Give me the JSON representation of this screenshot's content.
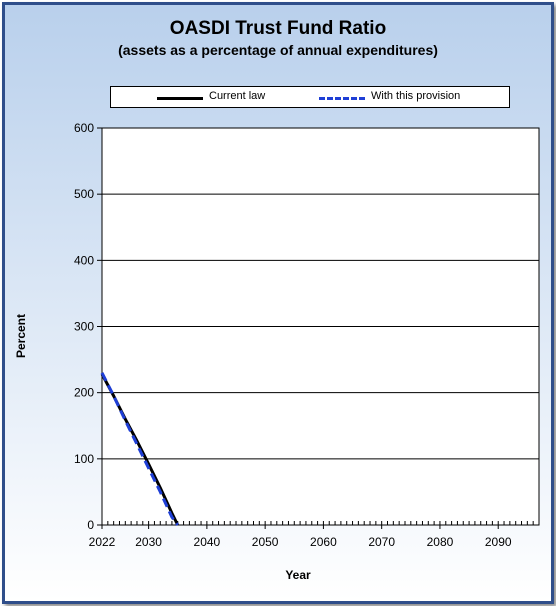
{
  "chart_data": {
    "type": "line",
    "title": "OASDI Trust Fund Ratio",
    "subtitle": "(assets as a percentage of annual expenditures)",
    "xlabel": "Year",
    "ylabel": "Percent",
    "xlim": [
      2022,
      2097
    ],
    "ylim": [
      0,
      600
    ],
    "x_ticks": [
      2022,
      2030,
      2040,
      2050,
      2060,
      2070,
      2080,
      2090
    ],
    "y_ticks": [
      0,
      100,
      200,
      300,
      400,
      500,
      600
    ],
    "grid": "horizontal",
    "legend_position": "top",
    "series": [
      {
        "name": "Current law",
        "color": "#000000",
        "style": "solid",
        "x": [
          2022,
          2024,
          2026,
          2028,
          2030,
          2032,
          2034,
          2035
        ],
        "y": [
          228,
          195,
          160,
          127,
          92,
          56,
          18,
          0
        ]
      },
      {
        "name": "With this provision",
        "color": "#1f3fd6",
        "style": "dashed",
        "x": [
          2022,
          2024,
          2026,
          2028,
          2030,
          2032,
          2034,
          2035
        ],
        "y": [
          230,
          195,
          158,
          122,
          86,
          50,
          12,
          0
        ]
      }
    ]
  }
}
